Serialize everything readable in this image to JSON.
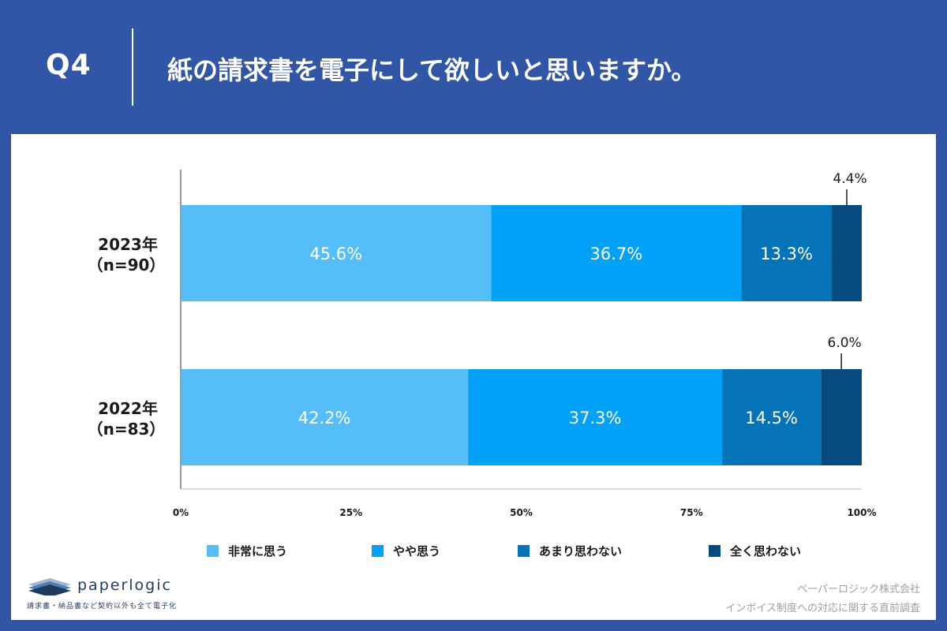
{
  "header": {
    "question_number": "Q4",
    "question_text": "紙の請求書を電子にして欲しいと思いますか。"
  },
  "chart_data": {
    "type": "bar",
    "orientation": "horizontal",
    "stacked": true,
    "categories": [
      {
        "label": "2023年",
        "sublabel": "（n=90）"
      },
      {
        "label": "2022年",
        "sublabel": "（n=83）"
      }
    ],
    "series": [
      {
        "name": "非常に思う",
        "color": "#55bdf8",
        "values": [
          45.6,
          42.2
        ],
        "labels": [
          "45.6%",
          "42.2%"
        ]
      },
      {
        "name": "やや思う",
        "color": "#03a2f8",
        "values": [
          36.7,
          37.3
        ],
        "labels": [
          "36.7%",
          "37.3%"
        ]
      },
      {
        "name": "あまり思わない",
        "color": "#0473b8",
        "values": [
          13.3,
          14.5
        ],
        "labels": [
          "13.3%",
          "14.5%"
        ]
      },
      {
        "name": "全く思わない",
        "color": "#044b80",
        "values": [
          4.4,
          6.0
        ],
        "labels": [
          "4.4%",
          "6.0%"
        ]
      }
    ],
    "xlim": [
      0,
      100
    ],
    "xticks": [
      "0%",
      "25%",
      "50%",
      "75%",
      "100%"
    ],
    "legend_position": "bottom"
  },
  "footer": {
    "brand": "paperlogic",
    "tagline": "請求書・納品書など契約以外も全て電子化",
    "company": "ペーパーロジック株式会社",
    "survey": "インボイス制度への対応に関する直前調査"
  }
}
